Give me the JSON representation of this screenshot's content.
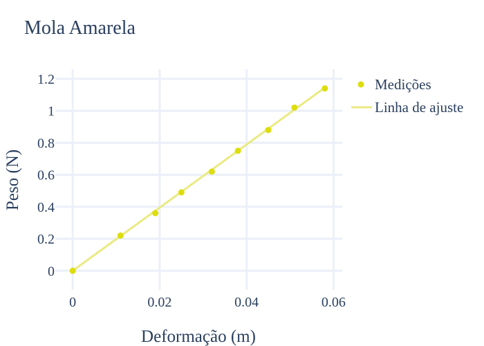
{
  "chart_data": {
    "type": "scatter",
    "title": "Mola Amarela",
    "xlabel": "Deformação (m)",
    "ylabel": "Peso (N)",
    "xlim": [
      -0.004,
      0.062
    ],
    "ylim": [
      -0.12,
      1.26
    ],
    "xticks": [
      0,
      0.02,
      0.04,
      0.06
    ],
    "xtick_labels": [
      "0",
      "0.02",
      "0.04",
      "0.06"
    ],
    "yticks": [
      0,
      0.2,
      0.4,
      0.6,
      0.8,
      1,
      1.2
    ],
    "ytick_labels": [
      "0",
      "0.2",
      "0.4",
      "0.6",
      "0.8",
      "1",
      "1.2"
    ],
    "grid": true,
    "legend_position": "top-right",
    "colors": {
      "marker": "#dddd0e",
      "fit_line": "#eaea82",
      "grid": "#ebf0f8",
      "text": "#2a3f5f"
    },
    "series": [
      {
        "name": "Medições",
        "mode": "markers",
        "x": [
          0,
          0.011,
          0.019,
          0.025,
          0.032,
          0.038,
          0.045,
          0.051,
          0.058
        ],
        "y": [
          0,
          0.22,
          0.36,
          0.49,
          0.62,
          0.75,
          0.88,
          1.02,
          1.14
        ]
      },
      {
        "name": "Linha de ajuste",
        "mode": "line",
        "x": [
          0,
          0.058
        ],
        "y": [
          0,
          1.145
        ]
      }
    ]
  }
}
